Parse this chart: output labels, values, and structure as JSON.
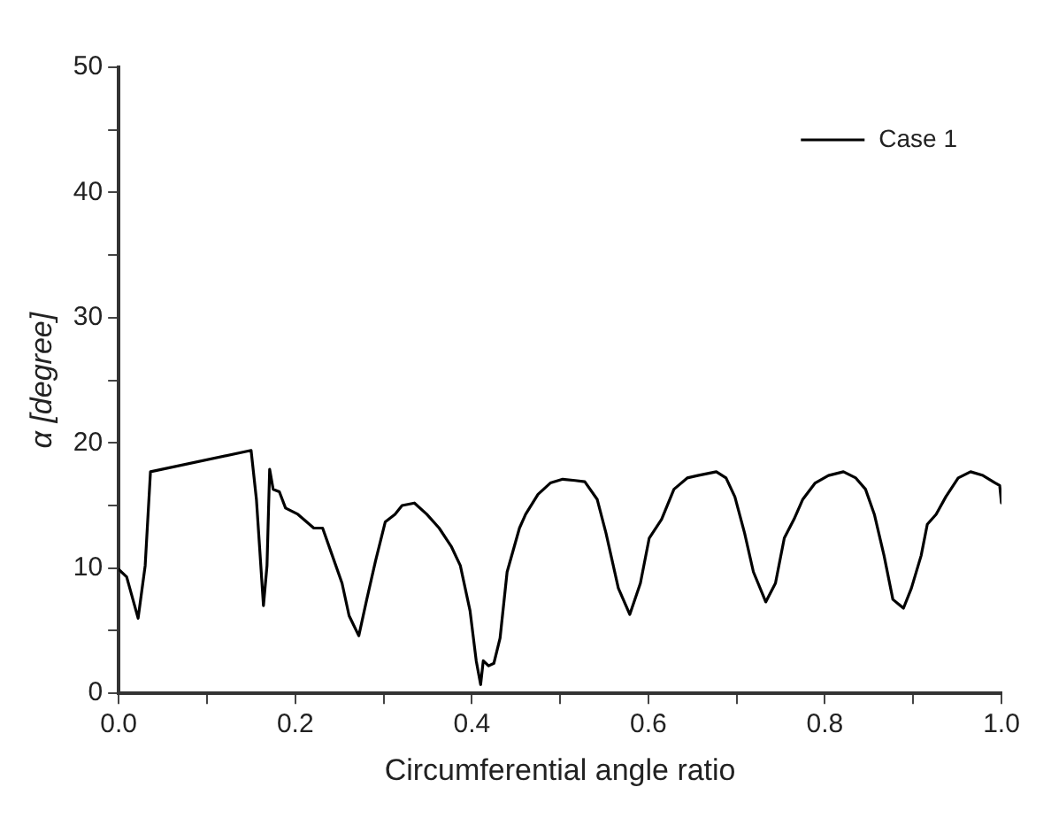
{
  "chart_data": {
    "type": "line",
    "xlabel": "Circumferential angle ratio",
    "ylabel": "α [degree]",
    "xlim": [
      0,
      1
    ],
    "ylim": [
      0,
      50
    ],
    "xticks": [
      {
        "value": 0,
        "label": "0.0"
      },
      {
        "value": 0.1,
        "label": null
      },
      {
        "value": 0.2,
        "label": "0.2"
      },
      {
        "value": 0.3,
        "label": null
      },
      {
        "value": 0.4,
        "label": "0.4"
      },
      {
        "value": 0.5,
        "label": null
      },
      {
        "value": 0.6,
        "label": "0.6"
      },
      {
        "value": 0.7,
        "label": null
      },
      {
        "value": 0.8,
        "label": "0.8"
      },
      {
        "value": 0.9,
        "label": null
      },
      {
        "value": 1,
        "label": "1.0"
      }
    ],
    "yticks": [
      0,
      {
        "value": 5,
        "label": null
      },
      10,
      {
        "value": 15,
        "label": null
      },
      20,
      {
        "value": 25,
        "label": null
      },
      30,
      {
        "value": 35,
        "label": null
      },
      40,
      {
        "value": 45,
        "label": null
      },
      50
    ],
    "grid": false,
    "legend": "top right",
    "marker": "none",
    "line_style": "solid",
    "series": [
      {
        "name": "Case 1",
        "color": "#000000",
        "x": [
          0,
          0.009,
          0.022,
          0.03,
          0.036,
          0.15,
          0.156,
          0.164,
          0.168,
          0.171,
          0.175,
          0.182,
          0.189,
          0.203,
          0.221,
          0.231,
          0.242,
          0.253,
          0.261,
          0.272,
          0.281,
          0.291,
          0.302,
          0.313,
          0.321,
          0.335,
          0.349,
          0.363,
          0.377,
          0.387,
          0.398,
          0.405,
          0.41,
          0.413,
          0.419,
          0.425,
          0.432,
          0.44,
          0.454,
          0.461,
          0.475,
          0.489,
          0.503,
          0.517,
          0.528,
          0.542,
          0.552,
          0.566,
          0.579,
          0.591,
          0.601,
          0.615,
          0.629,
          0.644,
          0.656,
          0.677,
          0.688,
          0.698,
          0.709,
          0.719,
          0.733,
          0.744,
          0.754,
          0.765,
          0.775,
          0.789,
          0.804,
          0.821,
          0.835,
          0.846,
          0.856,
          0.867,
          0.877,
          0.889,
          0.898,
          0.909,
          0.916,
          0.926,
          0.937,
          0.951,
          0.965,
          0.979,
          0.993,
          0.998,
          1
        ],
        "values": [
          9.9,
          9.3,
          6.0,
          10.2,
          17.7,
          19.4,
          15.5,
          7.0,
          10.2,
          17.9,
          16.3,
          16.1,
          14.8,
          14.3,
          13.2,
          13.2,
          11.0,
          8.8,
          6.2,
          4.6,
          7.5,
          10.6,
          13.7,
          14.3,
          15.0,
          15.2,
          14.3,
          13.2,
          11.7,
          10.2,
          6.6,
          2.6,
          0.7,
          2.6,
          2.2,
          2.4,
          4.4,
          9.7,
          13.2,
          14.3,
          15.9,
          16.8,
          17.1,
          17.0,
          16.9,
          15.5,
          12.8,
          8.4,
          6.3,
          8.8,
          12.4,
          13.9,
          16.3,
          17.2,
          17.4,
          17.7,
          17.2,
          15.7,
          12.8,
          9.7,
          7.3,
          8.8,
          12.4,
          13.9,
          15.5,
          16.8,
          17.4,
          17.7,
          17.2,
          16.3,
          14.3,
          11.0,
          7.5,
          6.8,
          8.4,
          11.0,
          13.5,
          14.3,
          15.7,
          17.2,
          17.7,
          17.4,
          16.8,
          16.6,
          15.2
        ]
      }
    ]
  }
}
